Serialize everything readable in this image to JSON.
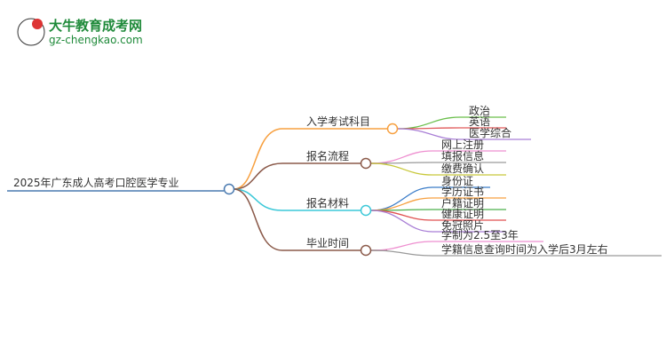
{
  "logo": {
    "title": "大牛教育成考网",
    "url": "gz-chengkao.com",
    "mark_text": "大牛"
  },
  "root": {
    "label": "2025年广东成人高考口腔医学专业",
    "color": "#4a7ab0"
  },
  "branches": [
    {
      "label": "入学考试科目",
      "color": "#f7a040",
      "children": [
        {
          "label": "政治",
          "color": "#6abf4b"
        },
        {
          "label": "英语",
          "color": "#e05a5a"
        },
        {
          "label": "医学综合",
          "color": "#a97fd6"
        }
      ]
    },
    {
      "label": "报名流程",
      "color": "#8b5a4a",
      "children": [
        {
          "label": "网上注册",
          "color": "#ee8fd0"
        },
        {
          "label": "填报信息",
          "color": "#9a9a9a"
        },
        {
          "label": "缴费确认",
          "color": "#c8c83a"
        }
      ]
    },
    {
      "label": "报名材料",
      "color": "#3cc8d8",
      "children": [
        {
          "label": "身份证",
          "color": "#3a7cc8"
        },
        {
          "label": "学历证书",
          "color": "#f7a040"
        },
        {
          "label": "户籍证明",
          "color": "#4cb04c"
        },
        {
          "label": "健康证明",
          "color": "#e05050"
        },
        {
          "label": "免冠照片",
          "color": "#a97fd6"
        }
      ]
    },
    {
      "label": "毕业时间",
      "color": "#8b5a4a",
      "children": [
        {
          "label": "学制为2.5至3年",
          "color": "#ee8fd0"
        },
        {
          "label": "学籍信息查询时间为入学后3月左右",
          "color": "#9a9a9a"
        }
      ]
    }
  ]
}
